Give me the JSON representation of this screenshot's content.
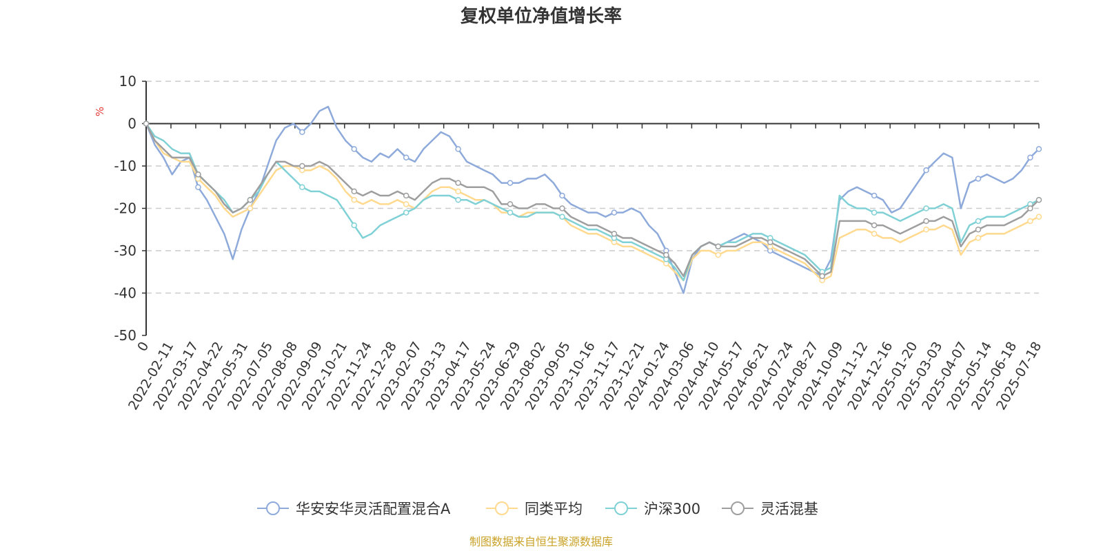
{
  "chart_data": {
    "type": "line",
    "title": "复权单位净值增长率",
    "ylabel": "%",
    "ylim": [
      -50,
      10
    ],
    "yticks": [
      10,
      0,
      -10,
      -20,
      -30,
      -40,
      -50
    ],
    "grid": true,
    "legend_position": "bottom",
    "x_tick_labels": [
      "0",
      "2022-02-11",
      "2022-03-17",
      "2022-04-22",
      "2022-05-31",
      "2022-07-05",
      "2022-08-08",
      "2022-09-09",
      "2022-10-21",
      "2022-11-24",
      "2022-12-28",
      "2023-02-07",
      "2023-03-13",
      "2023-04-17",
      "2023-05-24",
      "2023-06-29",
      "2023-08-02",
      "2023-09-05",
      "2023-10-16",
      "2023-11-17",
      "2023-12-21",
      "2024-01-24",
      "2024-03-06",
      "2024-04-10",
      "2024-05-17",
      "2024-06-21",
      "2024-07-24",
      "2024-08-27",
      "2024-10-09",
      "2024-11-12",
      "2024-12-16",
      "2025-01-20",
      "2025-03-03",
      "2025-04-07",
      "2025-05-14",
      "2025-06-18",
      "2025-07-18"
    ],
    "series": [
      {
        "name": "华安安华灵活配置混合A",
        "color": "#8eaadb",
        "values": [
          0,
          -5,
          -8,
          -12,
          -9,
          -8,
          -15,
          -18,
          -22,
          -26,
          -32,
          -25,
          -20,
          -16,
          -10,
          -4,
          -1,
          0,
          -2,
          0,
          3,
          4,
          -1,
          -4,
          -6,
          -8,
          -9,
          -7,
          -8,
          -6,
          -8,
          -9,
          -6,
          -4,
          -2,
          -3,
          -6,
          -9,
          -10,
          -11,
          -12,
          -14,
          -14,
          -14,
          -13,
          -13,
          -12,
          -14,
          -17,
          -19,
          -20,
          -21,
          -21,
          -22,
          -21,
          -21,
          -20,
          -21,
          -24,
          -26,
          -30,
          -35,
          -40,
          -32,
          -29,
          -28,
          -29,
          -28,
          -27,
          -26,
          -27,
          -28,
          -30,
          -31,
          -32,
          -33,
          -34,
          -35,
          -36,
          -32,
          -18,
          -16,
          -15,
          -16,
          -17,
          -18,
          -21,
          -20,
          -17,
          -14,
          -11,
          -9,
          -7,
          -8,
          -20,
          -14,
          -13,
          -12,
          -13,
          -14,
          -13,
          -11,
          -8,
          -6
        ]
      },
      {
        "name": "同类平均",
        "color": "#ffd98e",
        "values": [
          0,
          -4,
          -7,
          -8,
          -9,
          -9,
          -13,
          -15,
          -17,
          -20,
          -22,
          -21,
          -20,
          -17,
          -14,
          -11,
          -10,
          -10,
          -11,
          -11,
          -10,
          -11,
          -13,
          -16,
          -18,
          -19,
          -18,
          -19,
          -19,
          -18,
          -19,
          -20,
          -18,
          -16,
          -15,
          -15,
          -16,
          -17,
          -18,
          -18,
          -19,
          -21,
          -21,
          -22,
          -21,
          -21,
          -21,
          -21,
          -22,
          -24,
          -25,
          -26,
          -26,
          -27,
          -28,
          -29,
          -29,
          -30,
          -31,
          -32,
          -33,
          -35,
          -37,
          -32,
          -30,
          -30,
          -31,
          -30,
          -30,
          -29,
          -28,
          -28,
          -29,
          -30,
          -31,
          -32,
          -33,
          -35,
          -37,
          -36,
          -27,
          -26,
          -25,
          -25,
          -26,
          -27,
          -27,
          -28,
          -27,
          -26,
          -25,
          -25,
          -24,
          -25,
          -31,
          -28,
          -27,
          -26,
          -26,
          -26,
          -25,
          -24,
          -23,
          -22
        ]
      },
      {
        "name": "沪深300",
        "color": "#7fd1d6",
        "values": [
          0,
          -3,
          -4,
          -6,
          -7,
          -7,
          -12,
          -14,
          -16,
          -18,
          -21,
          -20,
          -18,
          -16,
          -12,
          -9,
          -11,
          -13,
          -15,
          -16,
          -16,
          -17,
          -18,
          -21,
          -24,
          -27,
          -26,
          -24,
          -23,
          -22,
          -21,
          -20,
          -18,
          -17,
          -17,
          -17,
          -18,
          -18,
          -19,
          -18,
          -19,
          -20,
          -21,
          -22,
          -22,
          -21,
          -21,
          -21,
          -22,
          -23,
          -24,
          -25,
          -25,
          -26,
          -27,
          -28,
          -28,
          -29,
          -30,
          -31,
          -32,
          -34,
          -37,
          -31,
          -29,
          -28,
          -29,
          -28,
          -28,
          -27,
          -26,
          -26,
          -27,
          -28,
          -29,
          -30,
          -31,
          -33,
          -35,
          -34,
          -17,
          -19,
          -20,
          -20,
          -21,
          -21,
          -22,
          -23,
          -22,
          -21,
          -20,
          -20,
          -19,
          -20,
          -28,
          -24,
          -23,
          -22,
          -22,
          -22,
          -21,
          -20,
          -19,
          -18
        ]
      },
      {
        "name": "灵活混基",
        "color": "#9e9e9e",
        "values": [
          0,
          -4,
          -6,
          -8,
          -8,
          -8,
          -12,
          -14,
          -16,
          -19,
          -21,
          -20,
          -18,
          -15,
          -12,
          -9,
          -9,
          -10,
          -10,
          -10,
          -9,
          -10,
          -12,
          -14,
          -16,
          -17,
          -16,
          -17,
          -17,
          -16,
          -17,
          -18,
          -16,
          -14,
          -13,
          -13,
          -14,
          -15,
          -15,
          -15,
          -16,
          -19,
          -19,
          -20,
          -20,
          -19,
          -19,
          -20,
          -20,
          -22,
          -23,
          -24,
          -24,
          -25,
          -26,
          -27,
          -27,
          -28,
          -29,
          -30,
          -31,
          -33,
          -36,
          -31,
          -29,
          -28,
          -29,
          -29,
          -29,
          -28,
          -27,
          -27,
          -28,
          -29,
          -30,
          -31,
          -32,
          -34,
          -36,
          -35,
          -23,
          -23,
          -23,
          -23,
          -24,
          -24,
          -25,
          -26,
          -25,
          -24,
          -23,
          -23,
          -22,
          -23,
          -29,
          -26,
          -25,
          -24,
          -24,
          -24,
          -23,
          -22,
          -20,
          -18
        ]
      }
    ]
  },
  "source_note": "制图数据来自恒生聚源数据库"
}
